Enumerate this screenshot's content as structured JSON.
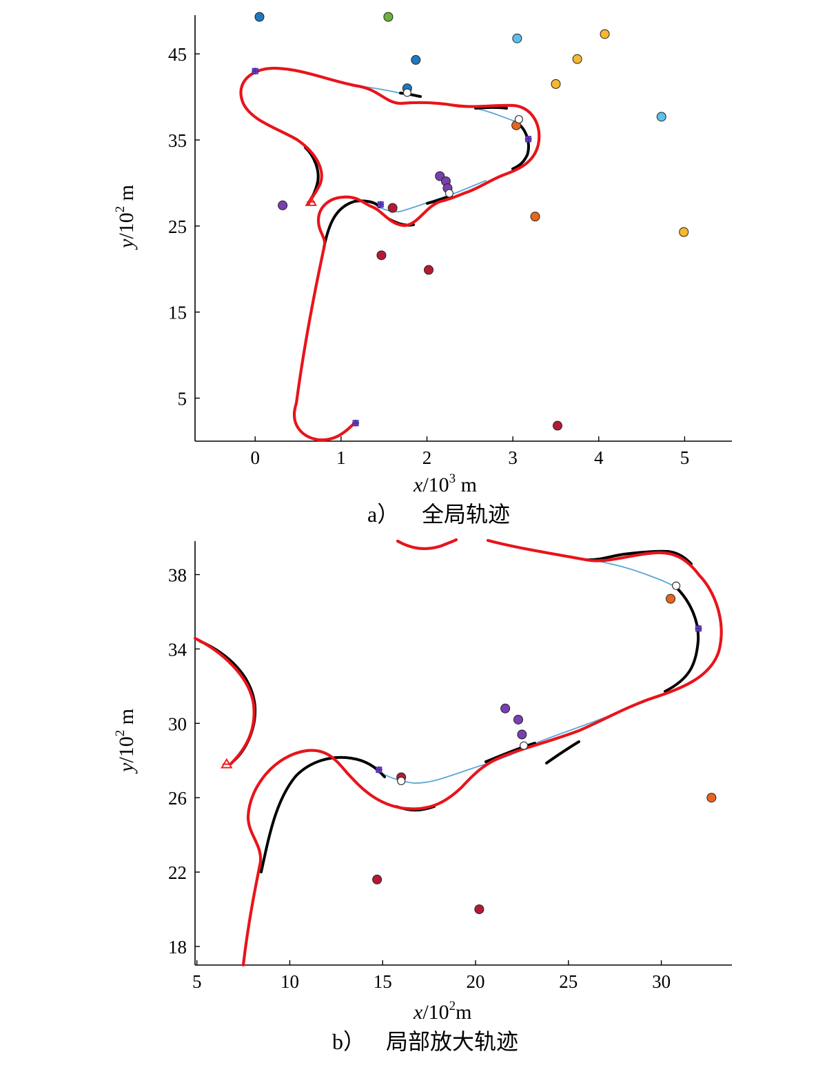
{
  "figure": {
    "panels": [
      {
        "caption_letter": "a）",
        "caption_text": "全局轨迹",
        "x_axis": {
          "var": "x",
          "unit_base": "/10",
          "exp": "3",
          "unit": " m"
        },
        "y_axis": {
          "var": "y",
          "unit_base": "/10",
          "exp": "2",
          "unit": " m"
        }
      },
      {
        "caption_letter": "b）",
        "caption_text": "局部放大轨迹",
        "x_axis": {
          "var": "x",
          "unit_base": "/10",
          "exp": "2",
          "unit": "m"
        },
        "y_axis": {
          "var": "y",
          "unit_base": "/10",
          "exp": "2",
          "unit": " m"
        }
      }
    ],
    "colors": {
      "optimized_path": "#e8141b",
      "reference_path": "#000000",
      "connector": "#5aa6d6",
      "waypoint": "#7a3fb0",
      "start_end_marker": "#ee2222"
    }
  },
  "chart_data": [
    {
      "type": "scatter",
      "xlim": [
        -0.7,
        5.55
      ],
      "ylim": [
        0.0,
        49.5
      ],
      "xticks": [
        0,
        1,
        2,
        3,
        4,
        5
      ],
      "yticks": [
        5,
        15,
        25,
        35,
        45
      ],
      "obstacles": [
        {
          "x": 0.05,
          "y": 49.3,
          "color": "#1f78c1"
        },
        {
          "x": 1.55,
          "y": 49.3,
          "color": "#6bb33a"
        },
        {
          "x": 3.05,
          "y": 46.8,
          "color": "#5bc0eb"
        },
        {
          "x": 4.07,
          "y": 47.3,
          "color": "#f6b731"
        },
        {
          "x": 1.87,
          "y": 44.3,
          "color": "#1f78c1"
        },
        {
          "x": 3.75,
          "y": 44.4,
          "color": "#f6b731"
        },
        {
          "x": 3.5,
          "y": 41.5,
          "color": "#f6b731"
        },
        {
          "x": 1.77,
          "y": 41.0,
          "color": "#1f78c1"
        },
        {
          "x": 4.73,
          "y": 37.7,
          "color": "#5bc0eb"
        },
        {
          "x": 3.04,
          "y": 36.7,
          "color": "#e8651e"
        },
        {
          "x": 2.15,
          "y": 30.8,
          "color": "#7a3fb0"
        },
        {
          "x": 2.22,
          "y": 30.2,
          "color": "#7a3fb0"
        },
        {
          "x": 2.24,
          "y": 29.4,
          "color": "#7a3fb0"
        },
        {
          "x": 0.32,
          "y": 27.4,
          "color": "#7a3fb0"
        },
        {
          "x": 1.6,
          "y": 27.1,
          "color": "#b31b35"
        },
        {
          "x": 3.26,
          "y": 26.1,
          "color": "#e8651e"
        },
        {
          "x": 4.99,
          "y": 24.3,
          "color": "#f6b731"
        },
        {
          "x": 1.47,
          "y": 21.6,
          "color": "#b31b35"
        },
        {
          "x": 2.02,
          "y": 19.9,
          "color": "#b31b35"
        },
        {
          "x": 3.52,
          "y": 1.8,
          "color": "#b31b35"
        }
      ],
      "waypoints": [
        {
          "x": 0.0,
          "y": 43.0
        },
        {
          "x": 3.18,
          "y": 35.1
        },
        {
          "x": 1.46,
          "y": 27.5
        },
        {
          "x": 1.17,
          "y": 2.1
        }
      ],
      "hollow_points": [
        {
          "x": 1.77,
          "y": 40.5
        },
        {
          "x": 3.07,
          "y": 37.4
        },
        {
          "x": 2.26,
          "y": 28.8
        }
      ],
      "end_marker": {
        "x": 0.65,
        "y": 27.8
      }
    },
    {
      "type": "scatter",
      "xlim": [
        4.9,
        33.8
      ],
      "ylim": [
        17.0,
        39.8
      ],
      "xticks": [
        5,
        10,
        15,
        20,
        25,
        30
      ],
      "yticks": [
        18,
        22,
        26,
        30,
        34,
        38
      ],
      "obstacles": [
        {
          "x": 30.5,
          "y": 36.7,
          "color": "#e8651e"
        },
        {
          "x": 21.6,
          "y": 30.8,
          "color": "#7a3fb0"
        },
        {
          "x": 22.3,
          "y": 30.2,
          "color": "#7a3fb0"
        },
        {
          "x": 22.5,
          "y": 29.4,
          "color": "#7a3fb0"
        },
        {
          "x": 16.0,
          "y": 27.1,
          "color": "#b31b35"
        },
        {
          "x": 32.7,
          "y": 26.0,
          "color": "#e8651e"
        },
        {
          "x": 14.7,
          "y": 21.6,
          "color": "#b31b35"
        },
        {
          "x": 20.2,
          "y": 20.0,
          "color": "#b31b35"
        }
      ],
      "waypoints": [
        {
          "x": 32.0,
          "y": 35.1
        },
        {
          "x": 14.8,
          "y": 27.5
        }
      ],
      "hollow_points": [
        {
          "x": 30.8,
          "y": 37.4
        },
        {
          "x": 16.0,
          "y": 26.9
        },
        {
          "x": 22.6,
          "y": 28.8
        }
      ],
      "end_marker": {
        "x": 6.6,
        "y": 27.8
      }
    }
  ]
}
